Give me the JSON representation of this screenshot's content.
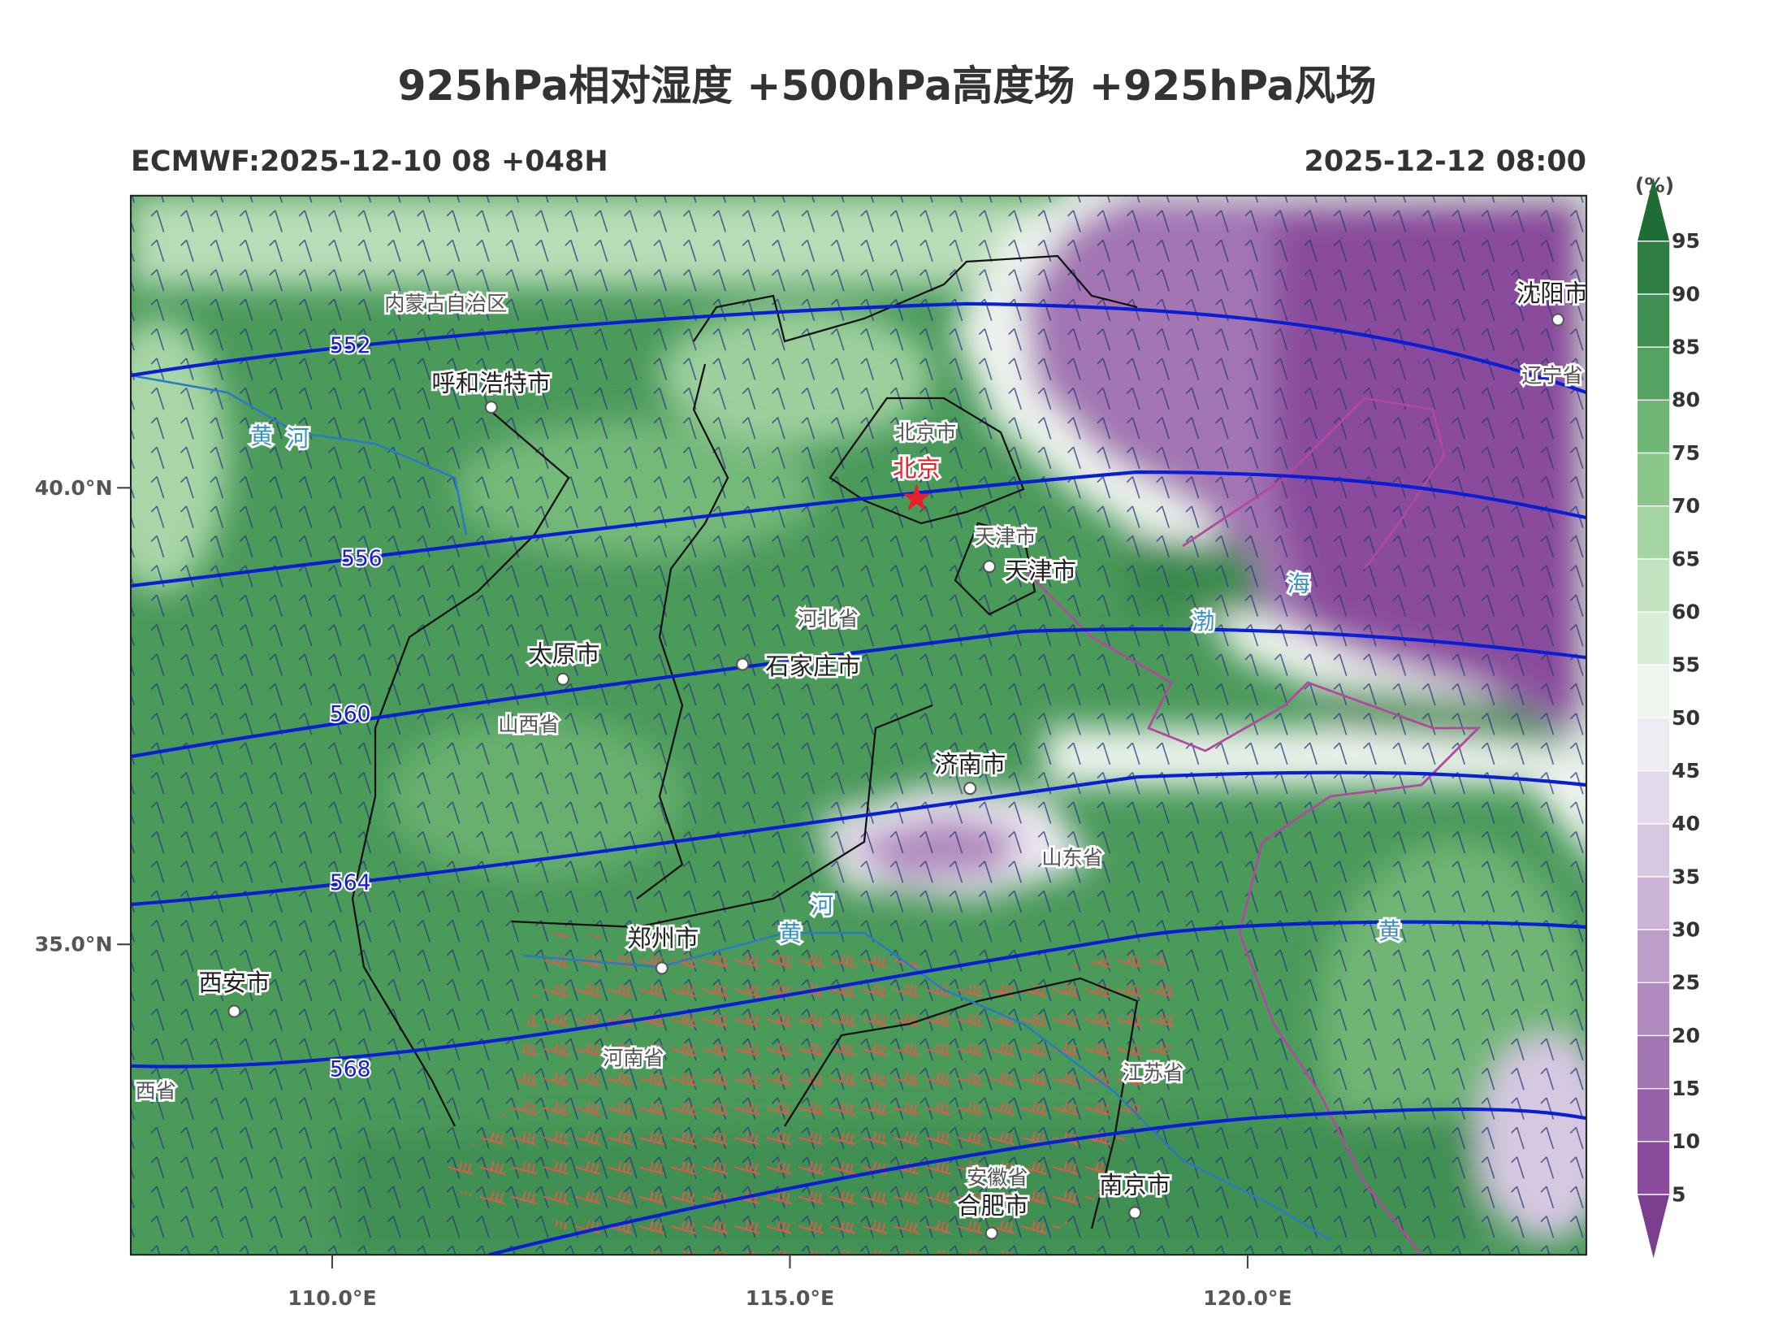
{
  "header": {
    "title": "925hPa相对湿度 +500hPa高度场 +925hPa风场",
    "left": "ECMWF:2025-12-10 08 +048H",
    "right": "2025-12-12 08:00"
  },
  "map": {
    "xlim": [
      107.8,
      123.7
    ],
    "ylim": [
      31.6,
      43.2
    ],
    "xticks": [
      {
        "value": 110,
        "label": "110.0°E"
      },
      {
        "value": 115,
        "label": "115.0°E"
      },
      {
        "value": 120,
        "label": "120.0°E"
      }
    ],
    "yticks": [
      {
        "value": 35,
        "label": "35.0°N"
      },
      {
        "value": 40,
        "label": "40.0°N"
      }
    ],
    "contour_labels": [
      "552",
      "556",
      "560",
      "564",
      "568"
    ],
    "places": [
      "内蒙古自治区",
      "呼和浩特市",
      "北京市",
      "北京",
      "天津市",
      "天津市",
      "河北省",
      "太原市",
      "石家庄市",
      "山西省",
      "济南市",
      "山东省",
      "郑州市",
      "西安市",
      "河南省",
      "江苏省",
      "安徽省",
      "合肥市",
      "南京市",
      "沈阳市",
      "辽宁省",
      "西省"
    ],
    "water_labels": [
      "黄",
      "河",
      "海",
      "渤",
      "河",
      "黄",
      "黄"
    ]
  },
  "colorbar": {
    "unit": "(%)",
    "ticks": [
      95,
      90,
      85,
      80,
      75,
      70,
      65,
      60,
      55,
      50,
      45,
      40,
      35,
      30,
      25,
      20,
      15,
      10,
      5
    ],
    "colors": [
      "#7b3f8f",
      "#8a4c9c",
      "#9560a6",
      "#a374b2",
      "#b08abf",
      "#bd9ecb",
      "#cab3d7",
      "#d7c8e2",
      "#e3dbec",
      "#efebf3",
      "#eef5ee",
      "#d9eed8",
      "#c1e3bf",
      "#a5d5a3",
      "#8bc68b",
      "#6fb575",
      "#56a262",
      "#418f52",
      "#2f7d43",
      "#1f6d36"
    ]
  }
}
